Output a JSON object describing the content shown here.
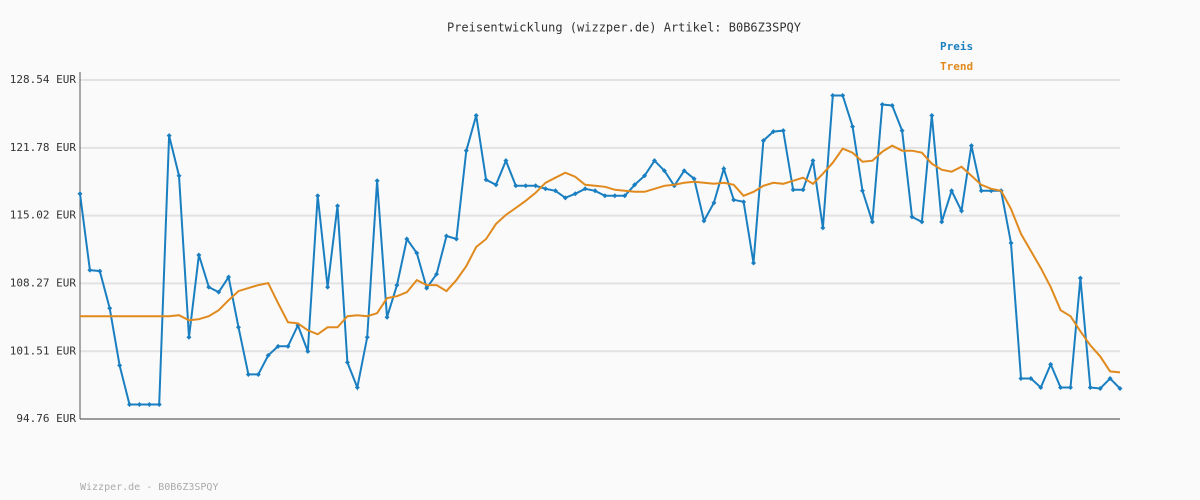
{
  "chart_data": {
    "type": "line",
    "title": "Preisentwicklung (wizzper.de) Artikel: B0B6Z3SPQY",
    "footer": "Wizzper.de - B0B6Z3SPQY",
    "categories": [
      null,
      null,
      null,
      null,
      null,
      null,
      null,
      null,
      null,
      null,
      null,
      null,
      null,
      null,
      null,
      null,
      null,
      null,
      null,
      null,
      null,
      null,
      null,
      null,
      null,
      null,
      null,
      null,
      null,
      null,
      null,
      null,
      null,
      null,
      null,
      null,
      null,
      null,
      null,
      null,
      null,
      null,
      null,
      null,
      null,
      null,
      null,
      null,
      null,
      null,
      null,
      null,
      null,
      null,
      null,
      null,
      null,
      null,
      null,
      null,
      null,
      null,
      null,
      null,
      null,
      null,
      null,
      null,
      null,
      null,
      null,
      null,
      null,
      null,
      null,
      null,
      null,
      null,
      null,
      null,
      null,
      null,
      null,
      null,
      null,
      null,
      null,
      null,
      null,
      null,
      null,
      null,
      null,
      null,
      null,
      null,
      null,
      null,
      null,
      null,
      null,
      null,
      null,
      null,
      null,
      null
    ],
    "series": [
      {
        "name": "Preis",
        "color": "#1a7fc1",
        "values": [
          117.2,
          109.6,
          109.5,
          105.8,
          100.1,
          96.2,
          96.2,
          96.2,
          96.2,
          123.0,
          119.0,
          102.9,
          111.1,
          107.9,
          107.4,
          108.9,
          103.9,
          99.2,
          99.2,
          101.1,
          102.0,
          102.0,
          104.1,
          101.5,
          117.0,
          107.9,
          116.0,
          100.4,
          97.9,
          102.9,
          118.5,
          104.9,
          108.1,
          112.7,
          111.3,
          107.8,
          109.2,
          113.0,
          112.7,
          121.5,
          125.0,
          118.6,
          118.1,
          120.5,
          118.0,
          118.0,
          118.0,
          117.7,
          117.5,
          116.8,
          117.2,
          117.7,
          117.5,
          117.0,
          117.0,
          117.0,
          118.1,
          119.0,
          120.5,
          119.5,
          118.0,
          119.5,
          118.7,
          114.5,
          116.3,
          119.7,
          116.6,
          116.4,
          110.3,
          122.5,
          123.4,
          123.5,
          117.6,
          117.6,
          120.5,
          113.8,
          127.0,
          127.0,
          123.9,
          117.5,
          114.4,
          126.1,
          126.0,
          123.5,
          114.9,
          114.4,
          125.0,
          114.4,
          117.5,
          115.5,
          122.0,
          117.5,
          117.5,
          117.5,
          112.3,
          98.8,
          98.8,
          97.9,
          100.2,
          97.9,
          97.9,
          108.8,
          97.9,
          97.8,
          98.8,
          97.8
        ]
      },
      {
        "name": "Trend",
        "color": "#e08a1e",
        "values": [
          105.0,
          105.0,
          105.0,
          105.0,
          105.0,
          105.0,
          105.0,
          105.0,
          105.0,
          105.0,
          105.1,
          104.6,
          104.7,
          105.0,
          105.6,
          106.6,
          107.5,
          107.8,
          108.1,
          108.3,
          106.3,
          104.4,
          104.3,
          103.6,
          103.2,
          103.9,
          103.9,
          105.0,
          105.1,
          105.0,
          105.3,
          106.8,
          107.0,
          107.4,
          108.6,
          108.1,
          108.1,
          107.5,
          108.6,
          110.0,
          111.9,
          112.7,
          114.2,
          115.1,
          115.8,
          116.5,
          117.3,
          118.3,
          118.8,
          119.3,
          118.9,
          118.1,
          118.0,
          117.9,
          117.6,
          117.5,
          117.4,
          117.4,
          117.7,
          118.0,
          118.1,
          118.3,
          118.4,
          118.3,
          118.2,
          118.3,
          118.1,
          117.0,
          117.4,
          118.0,
          118.3,
          118.2,
          118.5,
          118.8,
          118.2,
          119.2,
          120.3,
          121.7,
          121.3,
          120.4,
          120.5,
          121.4,
          122.0,
          121.5,
          121.5,
          121.3,
          120.2,
          119.6,
          119.4,
          119.9,
          119.0,
          118.1,
          117.7,
          117.5,
          115.7,
          113.2,
          111.5,
          109.8,
          107.9,
          105.6,
          105.0,
          103.5,
          102.1,
          101.0,
          99.5,
          99.4
        ]
      }
    ],
    "ylim": [
      94.76,
      128.54
    ],
    "yticks": [
      {
        "value": 94.76,
        "label": "94.76 EUR"
      },
      {
        "value": 101.51,
        "label": "101.51 EUR"
      },
      {
        "value": 108.27,
        "label": "108.27 EUR"
      },
      {
        "value": 115.02,
        "label": "115.02 EUR"
      },
      {
        "value": 121.78,
        "label": "121.78 EUR"
      },
      {
        "value": 128.54,
        "label": "128.54 EUR"
      }
    ],
    "grid": true,
    "legend": "top-right"
  }
}
